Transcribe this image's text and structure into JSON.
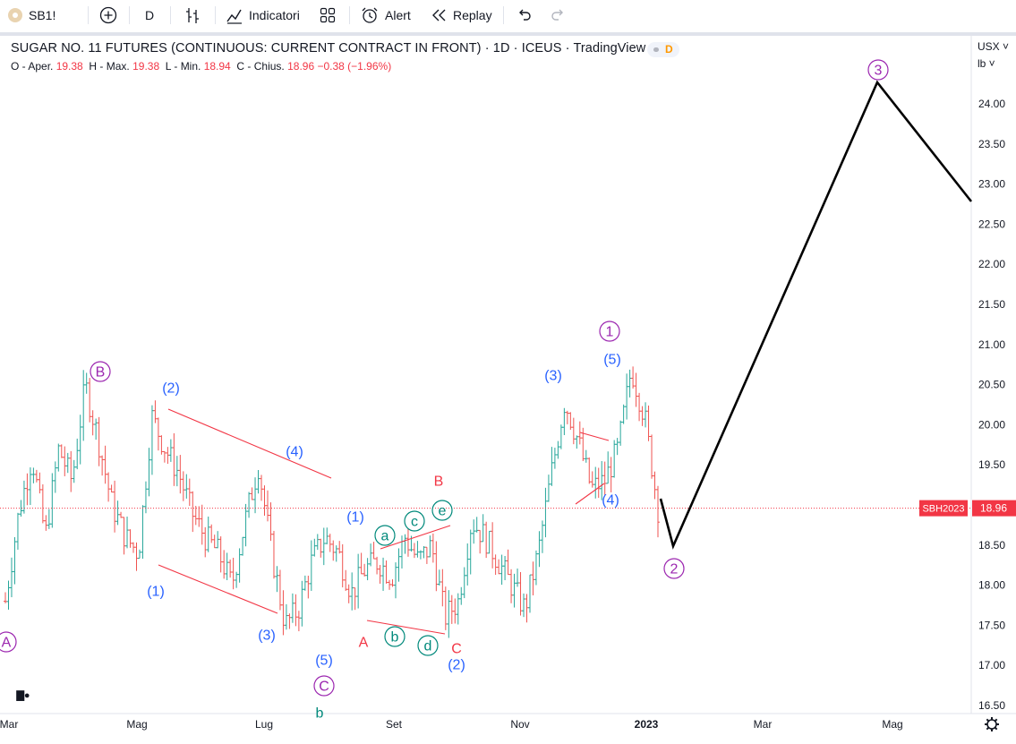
{
  "toolbar": {
    "symbol": "SB1!",
    "interval": "D",
    "indicators_label": "Indicatori",
    "alert_label": "Alert",
    "replay_label": "Replay"
  },
  "legend": {
    "title": "SUGAR NO. 11 FUTURES (CONTINUOUS: CURRENT CONTRACT IN FRONT) · 1D · ICEUS · TradingView",
    "badge": "D",
    "o_label": "O - Aper.",
    "o_value": "19.38",
    "h_label": "H - Max.",
    "h_value": "19.38",
    "l_label": "L - Min.",
    "l_value": "18.94",
    "c_label": "C - Chius.",
    "c_value": "18.96",
    "change": "−0.38 (−1.96%)"
  },
  "price_axis": {
    "currency": "USX",
    "unit": "lb",
    "ticks": [
      "24.00",
      "23.50",
      "23.00",
      "22.50",
      "22.00",
      "21.50",
      "21.00",
      "20.50",
      "20.00",
      "19.50",
      "19.00",
      "18.50",
      "18.00",
      "17.50",
      "17.00",
      "16.50"
    ],
    "last_price": "18.96",
    "last_label": "SBH2023"
  },
  "time_axis": {
    "ticks": [
      "Mar",
      "Mag",
      "Lug",
      "Set",
      "Nov",
      "2023",
      "Mar",
      "Mag"
    ]
  },
  "colors": {
    "up": "#26a69a",
    "down": "#ef5350",
    "wave_purple": "#9c27b0",
    "wave_blue": "#2962ff",
    "wave_green": "#00897b",
    "wave_red": "#f23645",
    "projection": "#000000"
  },
  "chart_data": {
    "type": "candlestick",
    "title": "SUGAR NO. 11 FUTURES (CONTINUOUS: CURRENT CONTRACT IN FRONT)",
    "interval": "1D",
    "exchange": "ICEUS",
    "ylim": [
      16.4,
      24.9
    ],
    "y_unit": "USX/lb",
    "x_ticks": [
      "Mar",
      "Mag",
      "Lug",
      "Set",
      "Nov",
      "2023",
      "Mar",
      "Mag"
    ],
    "last_price": 18.96,
    "last_contract": "SBH2023",
    "price_path": [
      [
        "Mar",
        17.8
      ],
      [
        "Mar",
        18.9
      ],
      [
        "Mar",
        19.6
      ],
      [
        "Mar",
        18.6
      ],
      [
        "Mar",
        19.7
      ],
      [
        "Apr",
        19.3
      ],
      [
        "Apr",
        20.5
      ],
      [
        "Apr",
        19.8
      ],
      [
        "Apr",
        19.0
      ],
      [
        "Apr",
        18.6
      ],
      [
        "Mag",
        18.4
      ],
      [
        "Mag",
        20.1
      ],
      [
        "Mag",
        19.7
      ],
      [
        "Mag",
        19.4
      ],
      [
        "Mag",
        18.9
      ],
      [
        "Jun",
        18.6
      ],
      [
        "Jun",
        18.4
      ],
      [
        "Jun",
        18.0
      ],
      [
        "Jun",
        18.8
      ],
      [
        "Jun",
        19.5
      ],
      [
        "Lug",
        18.4
      ],
      [
        "Lug",
        17.5
      ],
      [
        "Lug",
        17.7
      ],
      [
        "Lug",
        18.3
      ],
      [
        "Lug",
        18.6
      ],
      [
        "Aug",
        18.4
      ],
      [
        "Aug",
        17.9
      ],
      [
        "Aug",
        18.2
      ],
      [
        "Aug",
        18.3
      ],
      [
        "Aug",
        18.1
      ],
      [
        "Set",
        18.6
      ],
      [
        "Set",
        18.3
      ],
      [
        "Set",
        18.5
      ],
      [
        "Set",
        17.6
      ],
      [
        "Set",
        17.8
      ],
      [
        "Oct",
        18.8
      ],
      [
        "Oct",
        18.6
      ],
      [
        "Oct",
        18.3
      ],
      [
        "Oct",
        18.0
      ],
      [
        "Oct",
        17.7
      ],
      [
        "Nov",
        18.4
      ],
      [
        "Nov",
        19.4
      ],
      [
        "Nov",
        20.3
      ],
      [
        "Nov",
        19.8
      ],
      [
        "Nov",
        19.2
      ],
      [
        "Dec",
        19.3
      ],
      [
        "Dec",
        19.7
      ],
      [
        "Dec",
        20.7
      ],
      [
        "Dec",
        20.1
      ],
      [
        "Dec",
        18.96
      ]
    ],
    "wave_labels": [
      {
        "text": "A",
        "x": "Mar",
        "y": 17.3,
        "style": "circle",
        "color": "purple"
      },
      {
        "text": "B",
        "x": "Apr",
        "y": 20.7,
        "style": "circle",
        "color": "purple"
      },
      {
        "text": "(2)",
        "x": "Mag",
        "y": 20.5,
        "style": "paren",
        "color": "blue"
      },
      {
        "text": "(1)",
        "x": "Mag",
        "y": 18.0,
        "style": "paren",
        "color": "blue"
      },
      {
        "text": "(3)",
        "x": "Lug",
        "y": 17.4,
        "style": "paren",
        "color": "blue"
      },
      {
        "text": "(4)",
        "x": "Lug",
        "y": 19.7,
        "style": "paren",
        "color": "blue"
      },
      {
        "text": "(5)",
        "x": "Lug",
        "y": 17.1,
        "style": "paren",
        "color": "blue"
      },
      {
        "text": "C",
        "x": "Lug",
        "y": 16.6,
        "style": "circle",
        "color": "purple"
      },
      {
        "text": "b",
        "x": "Lug",
        "y": 16.4,
        "style": "plain",
        "color": "green"
      },
      {
        "text": "(1)",
        "x": "Aug",
        "y": 18.9,
        "style": "paren",
        "color": "blue"
      },
      {
        "text": "A",
        "x": "Aug",
        "y": 17.3,
        "style": "plain",
        "color": "red"
      },
      {
        "text": "a",
        "x": "Set",
        "y": 18.6,
        "style": "circle",
        "color": "green"
      },
      {
        "text": "b",
        "x": "Set",
        "y": 17.4,
        "style": "circle",
        "color": "green"
      },
      {
        "text": "c",
        "x": "Set",
        "y": 18.8,
        "style": "circle",
        "color": "green"
      },
      {
        "text": "d",
        "x": "Set",
        "y": 17.3,
        "style": "circle",
        "color": "green"
      },
      {
        "text": "e",
        "x": "Set",
        "y": 18.9,
        "style": "circle",
        "color": "green"
      },
      {
        "text": "B",
        "x": "Set",
        "y": 19.3,
        "style": "plain",
        "color": "red"
      },
      {
        "text": "C",
        "x": "Oct",
        "y": 17.2,
        "style": "plain",
        "color": "red"
      },
      {
        "text": "(2)",
        "x": "Oct",
        "y": 17.0,
        "style": "paren",
        "color": "blue"
      },
      {
        "text": "(3)",
        "x": "Nov",
        "y": 20.6,
        "style": "paren",
        "color": "blue"
      },
      {
        "text": "(4)",
        "x": "Dec",
        "y": 19.1,
        "style": "paren",
        "color": "blue"
      },
      {
        "text": "(5)",
        "x": "Dec",
        "y": 20.9,
        "style": "paren",
        "color": "blue"
      },
      {
        "text": "1",
        "x": "Dec",
        "y": 21.3,
        "style": "circle",
        "color": "purple"
      },
      {
        "text": "2",
        "x": "Jan",
        "y": 18.2,
        "style": "circle",
        "color": "purple"
      },
      {
        "text": "3",
        "x": "Apr",
        "y": 24.5,
        "style": "circle",
        "color": "purple"
      }
    ],
    "projection_path": [
      [
        19.15,
        "Jan"
      ],
      [
        18.55,
        "Jan"
      ],
      [
        24.35,
        "Apr"
      ],
      [
        22.9,
        "May"
      ]
    ],
    "trendlines_count": 7
  }
}
